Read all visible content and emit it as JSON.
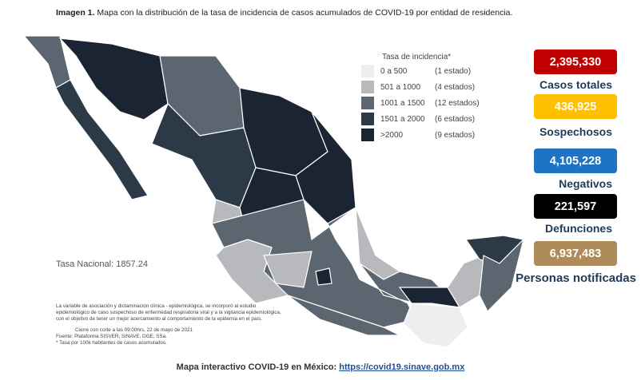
{
  "title": {
    "label": "Imagen 1.",
    "text": "Mapa con la distribución de la tasa de incidencia de casos acumulados de COVID-19 por entidad de residencia."
  },
  "legend": {
    "title": "Tasa de incidencia*",
    "items": [
      {
        "range": "0 a 500",
        "count": "(1 estado)",
        "color": "#eeeeee"
      },
      {
        "range": "501 a 1000",
        "count": "(4 estados)",
        "color": "#b7b9bd"
      },
      {
        "range": "1001 a 1500",
        "count": "(12 estados)",
        "color": "#5c6670"
      },
      {
        "range": "1501 a 2000",
        "count": "(6 estados)",
        "color": "#2c3a48"
      },
      {
        "range": ">2000",
        "count": "(9 estados)",
        "color": "#1b2433"
      }
    ]
  },
  "national_rate": "Tasa Nacional: 1857.24",
  "stats": [
    {
      "value": "2,395,330",
      "label": "Casos totales",
      "color": "#c00000"
    },
    {
      "value": "436,925",
      "label": "Sospechosos",
      "color": "#ffc000"
    },
    {
      "value": "4,105,228",
      "label": "Negativos",
      "color": "#1f73c7"
    },
    {
      "value": "221,597",
      "label": "Defunciones",
      "color": "#000000"
    },
    {
      "value": "6,937,483",
      "label": "Personas notificadas",
      "color": "#b08b5a"
    }
  ],
  "notes": [
    "La variable de asociación y dictaminación clínica - epidemiológica, se incorporó al estudio",
    "epidemiológico de caso sospechoso de enfermedad respiratoria viral y a la vigilancia epidemiológica,",
    "con el objetivo de tener un mejor acercamiento al comportamiento de la epidemia en el país.",
    "Cierre con corte a las 09:00hrs, 22 de mayo de 2021",
    "Fuente: Plataforma SISVER, SINAVE, DGE, SSa.",
    "* Tasa por 100k habitantes de casos acumulados."
  ],
  "footer": {
    "text": "Mapa interactivo COVID-19 en México:",
    "link": "https://covid19.sinave.gob.mx"
  }
}
